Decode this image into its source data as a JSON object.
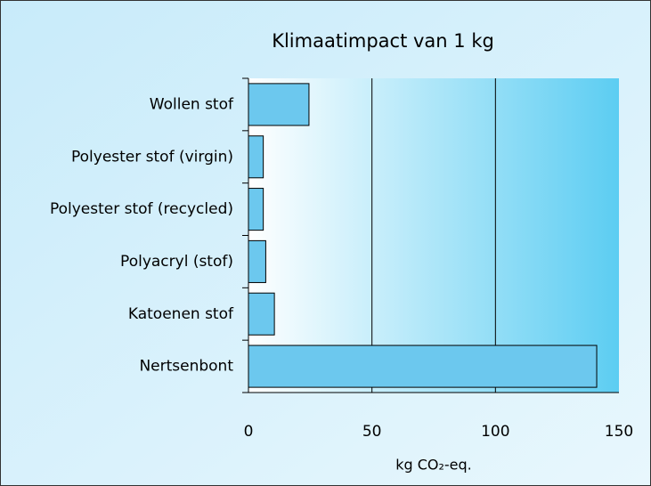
{
  "chart_data": {
    "type": "bar",
    "orientation": "horizontal",
    "title": "Klimaatimpact van 1 kg",
    "x_label": "kg CO₂-eq.",
    "categories": [
      "Wollen stof",
      "Polyester stof (virgin)",
      "Polyester stof (recycled)",
      "Polyacryl (stof)",
      "Katoenen stof",
      "Nertsenbont"
    ],
    "values": [
      24.5,
      6,
      6,
      7,
      10.5,
      141
    ],
    "color": "#6cc8ee",
    "xlim": [
      0,
      150
    ],
    "xticks": [
      0,
      50,
      100,
      150
    ],
    "grid": true
  }
}
